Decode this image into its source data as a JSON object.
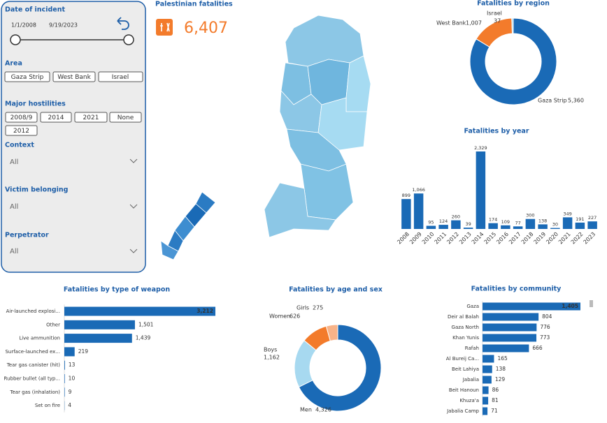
{
  "filters": {
    "date": {
      "title": "Date of incident",
      "start": "1/1/2008",
      "end": "9/19/2023"
    },
    "area": {
      "title": "Area",
      "options": [
        "Gaza Strip",
        "West Bank",
        "Israel"
      ]
    },
    "hostilities": {
      "title": "Major hostilities",
      "options": [
        "2008/9",
        "2014",
        "2021",
        "None",
        "2012"
      ]
    },
    "context": {
      "title": "Context",
      "value": "All"
    },
    "victim": {
      "title": "Victim belonging",
      "value": "All"
    },
    "perpetrator": {
      "title": "Perpetrator",
      "value": "All"
    }
  },
  "kpi": {
    "title": "Palestinian fatalities",
    "value": "6,407"
  },
  "chart_data": [
    {
      "type": "donut",
      "title": "Fatalities by region",
      "categories": [
        "Gaza Strip",
        "West Bank",
        "Israel"
      ],
      "values": [
        5360,
        1007,
        37
      ],
      "value_labels": [
        "5,360",
        "1,007",
        "37"
      ],
      "colors": [
        "#1a6ab6",
        "#f37b2b",
        "#a7d9f0"
      ]
    },
    {
      "type": "bar",
      "title": "Fatalities by year",
      "categories": [
        "2008",
        "2009",
        "2010",
        "2011",
        "2012",
        "2013",
        "2014",
        "2015",
        "2016",
        "2017",
        "2018",
        "2019",
        "2020",
        "2021",
        "2022",
        "2023"
      ],
      "values": [
        899,
        1066,
        95,
        124,
        260,
        39,
        2329,
        174,
        109,
        77,
        300,
        138,
        30,
        349,
        191,
        227
      ],
      "value_labels": [
        "899",
        "1,066",
        "95",
        "124",
        "260",
        "39",
        "2,329",
        "174",
        "109",
        "77",
        "300",
        "138",
        "30",
        "349",
        "191",
        "227"
      ],
      "color": "#1a6ab6"
    },
    {
      "type": "hbar",
      "title": "Fatalities by type of weapon",
      "categories": [
        "Air-launched explosi...",
        "Other",
        "Live ammunition",
        "Surface-launched ex...",
        "Tear gas canister (hit)",
        "Rubber bullet (all typ...",
        "Tear gas (inhalation)",
        "Set on fire"
      ],
      "values": [
        3212,
        1501,
        1439,
        219,
        13,
        10,
        9,
        4
      ],
      "value_labels": [
        "3,212",
        "1,501",
        "1,439",
        "219",
        "13",
        "10",
        "9",
        "4"
      ],
      "color": "#1a6ab6"
    },
    {
      "type": "donut",
      "title": "Fatalities by age and sex",
      "categories": [
        "Men",
        "Boys",
        "Women",
        "Girls"
      ],
      "values": [
        4326,
        1162,
        626,
        275
      ],
      "value_labels": [
        "4,326",
        "1,162",
        "626",
        "275"
      ],
      "colors": [
        "#1a6ab6",
        "#a7d9f0",
        "#f37b2b",
        "#f8b388"
      ]
    },
    {
      "type": "hbar",
      "title": "Fatalities by community",
      "categories": [
        "Gaza",
        "Deir al Balah",
        "Gaza North",
        "Khan Yunis",
        "Rafah",
        "Al Bureij Ca...",
        "Beit Lahiya",
        "Jabalia",
        "Beit Hanoun",
        "Khuza'a",
        "Jabalia Camp"
      ],
      "values": [
        1405,
        804,
        776,
        773,
        666,
        165,
        138,
        129,
        86,
        81,
        71
      ],
      "value_labels": [
        "1,405",
        "804",
        "776",
        "773",
        "666",
        "165",
        "138",
        "129",
        "86",
        "81",
        "71"
      ],
      "color": "#1a6ab6"
    }
  ]
}
